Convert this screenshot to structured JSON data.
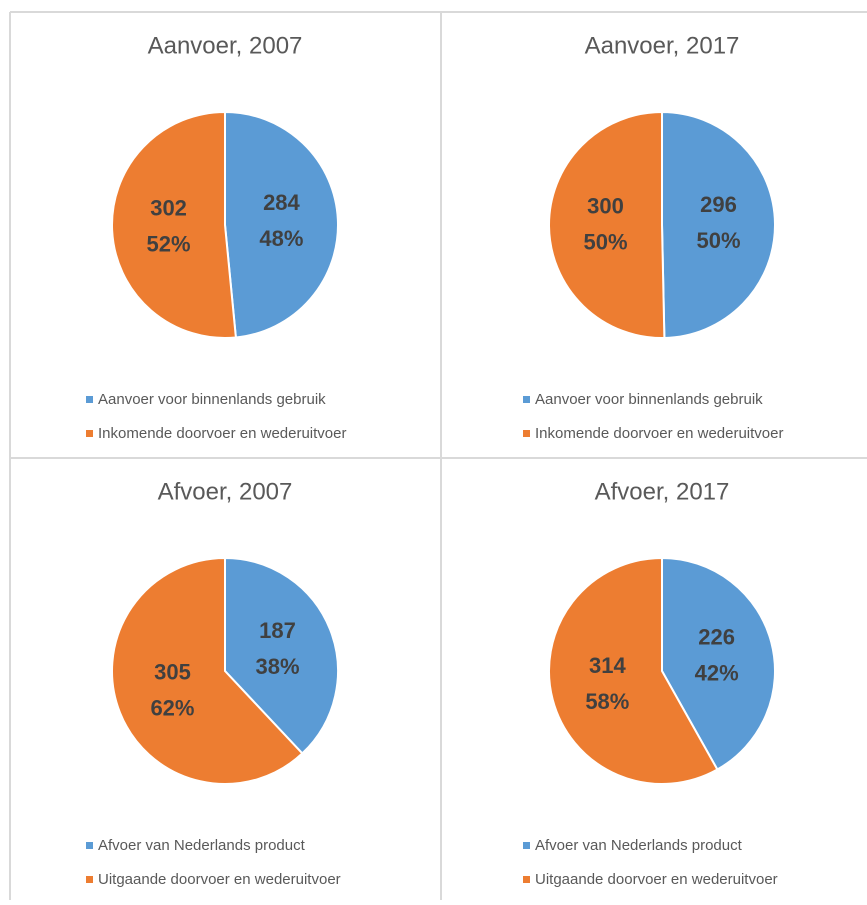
{
  "chart_data": [
    {
      "type": "pie",
      "title": "Aanvoer, 2007",
      "categories": [
        "Aanvoer voor binnenlands gebruik",
        "Inkomende doorvoer en wederuitvoer"
      ],
      "values": [
        284,
        302
      ],
      "percent_labels": [
        "48%",
        "52%"
      ],
      "colors": [
        "#5b9bd5",
        "#ed7d31"
      ],
      "legend": "bottom"
    },
    {
      "type": "pie",
      "title": "Aanvoer, 2017",
      "categories": [
        "Aanvoer voor binnenlands gebruik",
        "Inkomende doorvoer en wederuitvoer"
      ],
      "values": [
        296,
        300
      ],
      "percent_labels": [
        "50%",
        "50%"
      ],
      "colors": [
        "#5b9bd5",
        "#ed7d31"
      ],
      "legend": "bottom"
    },
    {
      "type": "pie",
      "title": "Afvoer, 2007",
      "categories": [
        "Afvoer van Nederlands product",
        "Uitgaande doorvoer en wederuitvoer"
      ],
      "values": [
        187,
        305
      ],
      "percent_labels": [
        "38%",
        "62%"
      ],
      "colors": [
        "#5b9bd5",
        "#ed7d31"
      ],
      "legend": "bottom"
    },
    {
      "type": "pie",
      "title": "Afvoer, 2017",
      "categories": [
        "Afvoer van Nederlands product",
        "Uitgaande doorvoer en wederuitvoer"
      ],
      "values": [
        226,
        314
      ],
      "percent_labels": [
        "42%",
        "58%"
      ],
      "colors": [
        "#5b9bd5",
        "#ed7d31"
      ],
      "legend": "bottom"
    }
  ]
}
